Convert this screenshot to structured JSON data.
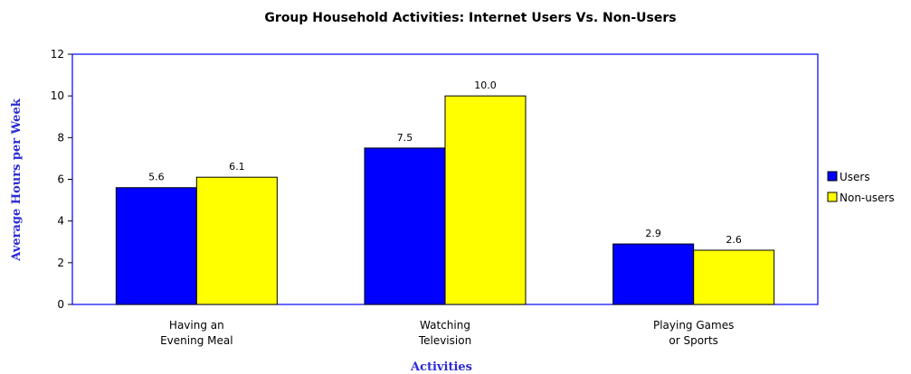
{
  "chart_data": {
    "type": "bar",
    "title": "Group Household Activities: Internet Users Vs. Non-Users",
    "xlabel": "Activities",
    "ylabel": "Average Hours per Week",
    "ylim": [
      0,
      12
    ],
    "yticks": [
      0,
      2,
      4,
      6,
      8,
      10,
      12
    ],
    "categories": [
      [
        "Having an",
        "Evening Meal"
      ],
      [
        "Watching",
        "Television"
      ],
      [
        "Playing Games",
        "or Sports"
      ]
    ],
    "series": [
      {
        "name": "Users",
        "values": [
          5.6,
          7.5,
          2.9
        ],
        "labels": [
          "5.6",
          "7.5",
          "2.9"
        ],
        "color": "#0000ff"
      },
      {
        "name": "Non-users",
        "values": [
          6.1,
          10.0,
          2.6
        ],
        "labels": [
          "6.1",
          "10.0",
          "2.6"
        ],
        "color": "#ffff00"
      }
    ],
    "legend": "right",
    "grid": false,
    "frame_color": "#0000ff",
    "axis_title_color": "#2b2bd6"
  }
}
